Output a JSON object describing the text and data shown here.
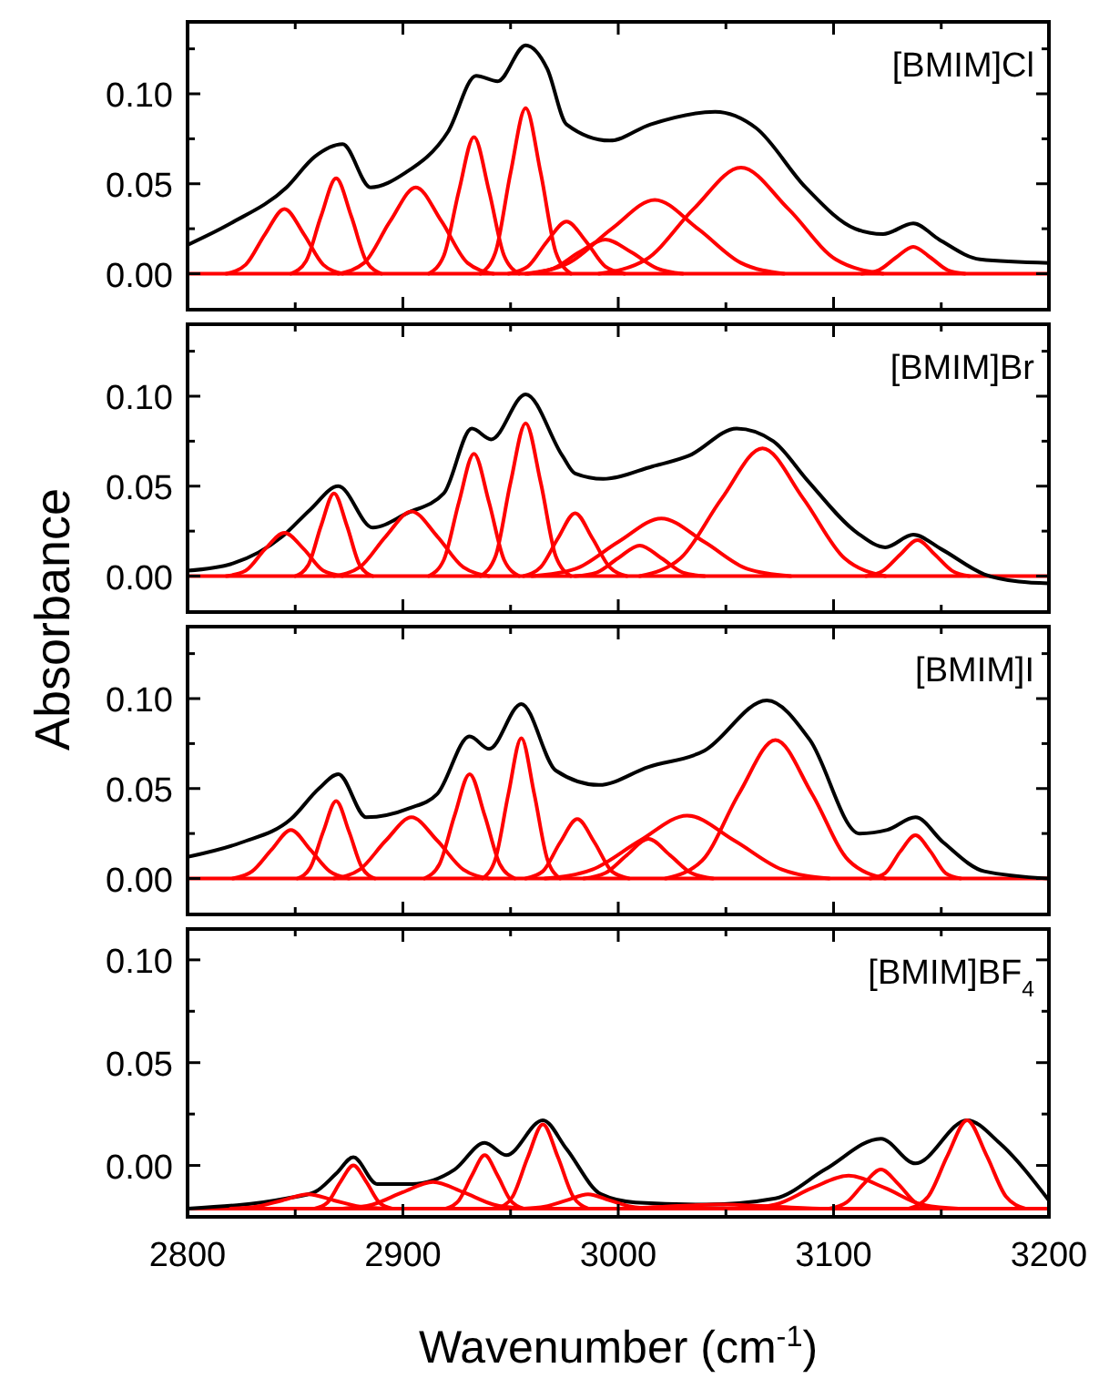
{
  "chart_data": [
    {
      "type": "line",
      "title": "[BMIM]Cl",
      "xlim": [
        2800,
        3200
      ],
      "ylim": [
        -0.02,
        0.14
      ],
      "tick_labels": "y",
      "xticks": [
        2800,
        {
          "value": 2850,
          "label": null
        },
        2900,
        {
          "value": 2950,
          "label": null
        },
        3000,
        {
          "value": 3050,
          "label": null
        },
        3100,
        {
          "value": 3150,
          "label": null
        },
        3200
      ],
      "yticks": [
        {
          "value": 0,
          "label": "0.00"
        },
        {
          "value": 0.025,
          "label": null
        },
        {
          "value": 0.05,
          "label": "0.05"
        },
        {
          "value": 0.075,
          "label": null
        },
        {
          "value": 0.1,
          "label": "0.10"
        },
        {
          "value": 0.125,
          "label": null
        }
      ],
      "ref_lines": [
        {
          "axis": "y",
          "value": 0,
          "color": "#ff0000"
        }
      ],
      "series": [
        {
          "color": "#000000",
          "x": [
            2800,
            2820,
            2846,
            2859,
            2872,
            2885,
            2901,
            2921,
            2934,
            2944,
            2957,
            2967,
            2976,
            2996,
            3015,
            3045,
            3064,
            3087,
            3110,
            3123,
            3137,
            3149,
            3168,
            3200
          ],
          "values": [
            0.016,
            0.028,
            0.048,
            0.065,
            0.072,
            0.048,
            0.056,
            0.079,
            0.11,
            0.107,
            0.127,
            0.114,
            0.083,
            0.074,
            0.083,
            0.09,
            0.081,
            0.048,
            0.025,
            0.022,
            0.028,
            0.019,
            0.008,
            0.006
          ]
        },
        {
          "color": "#ff0000",
          "x": [
            2818,
            2827,
            2836,
            2845,
            2854,
            2863,
            2872
          ],
          "values": [
            0,
            0.005,
            0.022,
            0.036,
            0.022,
            0.005,
            0
          ]
        },
        {
          "color": "#ff0000",
          "x": [
            2848,
            2855,
            2862,
            2869,
            2876,
            2883,
            2890
          ],
          "values": [
            0,
            0.007,
            0.032,
            0.053,
            0.032,
            0.007,
            0
          ]
        },
        {
          "color": "#ff0000",
          "x": [
            2870,
            2882,
            2894,
            2906,
            2918,
            2930,
            2942
          ],
          "values": [
            0,
            0.006,
            0.029,
            0.048,
            0.029,
            0.006,
            0
          ]
        },
        {
          "color": "#ff0000",
          "x": [
            2912,
            2919,
            2926,
            2933,
            2940,
            2947,
            2954
          ],
          "values": [
            0,
            0.01,
            0.046,
            0.076,
            0.046,
            0.01,
            0
          ]
        },
        {
          "color": "#ff0000",
          "x": [
            2936,
            2943,
            2950,
            2957,
            2964,
            2971,
            2978
          ],
          "values": [
            0,
            0.012,
            0.056,
            0.092,
            0.056,
            0.012,
            0
          ]
        },
        {
          "color": "#ff0000",
          "x": [
            2949,
            2958,
            2967,
            2976,
            2985,
            2994,
            3003
          ],
          "values": [
            0,
            0.004,
            0.018,
            0.029,
            0.018,
            0.004,
            0
          ]
        },
        {
          "color": "#ff0000",
          "x": [
            2958,
            2970,
            2982,
            2994,
            3006,
            3018,
            3030
          ],
          "values": [
            0,
            0.003,
            0.012,
            0.019,
            0.012,
            0.003,
            0
          ]
        },
        {
          "color": "#ff0000",
          "x": [
            2957,
            2977,
            2997,
            3017,
            3037,
            3057,
            3077
          ],
          "values": [
            0,
            0.006,
            0.025,
            0.041,
            0.025,
            0.006,
            0
          ]
        },
        {
          "color": "#ff0000",
          "x": [
            2991,
            3013,
            3035,
            3057,
            3079,
            3101,
            3123
          ],
          "values": [
            0,
            0.008,
            0.036,
            0.059,
            0.036,
            0.008,
            0
          ]
        },
        {
          "color": "#ff0000",
          "x": [
            3113,
            3121,
            3129,
            3137,
            3145,
            3153,
            3161
          ],
          "values": [
            0,
            0.002,
            0.009,
            0.015,
            0.009,
            0.002,
            0
          ]
        }
      ]
    },
    {
      "type": "line",
      "title": "[BMIM]Br",
      "ylabel": "Absorbance",
      "xlim": [
        2800,
        3200
      ],
      "ylim": [
        -0.02,
        0.14
      ],
      "tick_labels": "y",
      "xticks": [
        2800,
        {
          "value": 2850,
          "label": null
        },
        2900,
        {
          "value": 2950,
          "label": null
        },
        3000,
        {
          "value": 3050,
          "label": null
        },
        3100,
        {
          "value": 3150,
          "label": null
        },
        3200
      ],
      "yticks": [
        {
          "value": 0,
          "label": "0.00"
        },
        {
          "value": 0.025,
          "label": null
        },
        {
          "value": 0.05,
          "label": "0.05"
        },
        {
          "value": 0.075,
          "label": null
        },
        {
          "value": 0.1,
          "label": "0.10"
        },
        {
          "value": 0.125,
          "label": null
        }
      ],
      "ref_lines": [
        {
          "axis": "y",
          "value": 0,
          "color": "#ff0000"
        }
      ],
      "series": [
        {
          "color": "#000000",
          "x": [
            2800,
            2821,
            2844,
            2857,
            2870,
            2886,
            2902,
            2919,
            2932,
            2941,
            2957,
            2974,
            2980,
            2993,
            3016,
            3033,
            3055,
            3072,
            3088,
            3111,
            3124,
            3137,
            3150,
            3170,
            3186,
            3200
          ],
          "values": [
            0.003,
            0.007,
            0.022,
            0.037,
            0.05,
            0.027,
            0.035,
            0.046,
            0.082,
            0.076,
            0.101,
            0.067,
            0.057,
            0.054,
            0.061,
            0.067,
            0.082,
            0.075,
            0.053,
            0.024,
            0.016,
            0.023,
            0.015,
            0.001,
            -0.003,
            -0.004
          ]
        },
        {
          "color": "#ff0000",
          "x": [
            2818,
            2827,
            2836,
            2845,
            2854,
            2863,
            2872
          ],
          "values": [
            0,
            0.003,
            0.015,
            0.024,
            0.015,
            0.003,
            0
          ]
        },
        {
          "color": "#ff0000",
          "x": [
            2850,
            2856,
            2862,
            2868,
            2874,
            2880,
            2886
          ],
          "values": [
            0,
            0.006,
            0.028,
            0.046,
            0.028,
            0.006,
            0
          ]
        },
        {
          "color": "#ff0000",
          "x": [
            2868,
            2880,
            2892,
            2904,
            2916,
            2928,
            2940
          ],
          "values": [
            0,
            0.005,
            0.022,
            0.036,
            0.022,
            0.005,
            0
          ]
        },
        {
          "color": "#ff0000",
          "x": [
            2912,
            2919,
            2926,
            2933,
            2940,
            2947,
            2954
          ],
          "values": [
            0,
            0.009,
            0.041,
            0.068,
            0.041,
            0.009,
            0
          ]
        },
        {
          "color": "#ff0000",
          "x": [
            2936,
            2943,
            2950,
            2957,
            2964,
            2971,
            2978
          ],
          "values": [
            0,
            0.011,
            0.052,
            0.085,
            0.052,
            0.011,
            0
          ]
        },
        {
          "color": "#ff0000",
          "x": [
            2956,
            2964,
            2972,
            2980,
            2988,
            2996,
            3004
          ],
          "values": [
            0,
            0.005,
            0.021,
            0.035,
            0.021,
            0.005,
            0
          ]
        },
        {
          "color": "#ff0000",
          "x": [
            2980,
            2990,
            3000,
            3010,
            3020,
            3030,
            3040
          ],
          "values": [
            0,
            0.002,
            0.01,
            0.017,
            0.01,
            0.002,
            0
          ]
        },
        {
          "color": "#ff0000",
          "x": [
            2960,
            2980,
            3000,
            3020,
            3040,
            3060,
            3080
          ],
          "values": [
            0,
            0.004,
            0.019,
            0.032,
            0.019,
            0.004,
            0
          ]
        },
        {
          "color": "#ff0000",
          "x": [
            3010,
            3029,
            3048,
            3067,
            3086,
            3105,
            3124
          ],
          "values": [
            0,
            0.01,
            0.043,
            0.071,
            0.043,
            0.01,
            0
          ]
        },
        {
          "color": "#ff0000",
          "x": [
            3115,
            3123,
            3131,
            3139,
            3147,
            3155,
            3163
          ],
          "values": [
            0,
            0.003,
            0.012,
            0.02,
            0.012,
            0.003,
            0
          ]
        }
      ]
    },
    {
      "type": "line",
      "title": "[BMIM]I",
      "xlim": [
        2800,
        3200
      ],
      "ylim": [
        -0.02,
        0.14
      ],
      "tick_labels": "y",
      "xticks": [
        2800,
        {
          "value": 2850,
          "label": null
        },
        2900,
        {
          "value": 2950,
          "label": null
        },
        3000,
        {
          "value": 3050,
          "label": null
        },
        3100,
        {
          "value": 3150,
          "label": null
        },
        3200
      ],
      "yticks": [
        {
          "value": 0,
          "label": "0.00"
        },
        {
          "value": 0.025,
          "label": null
        },
        {
          "value": 0.05,
          "label": "0.05"
        },
        {
          "value": 0.075,
          "label": null
        },
        {
          "value": 0.1,
          "label": "0.10"
        },
        {
          "value": 0.125,
          "label": null
        }
      ],
      "ref_lines": [
        {
          "axis": "y",
          "value": 0,
          "color": "#ff0000"
        }
      ],
      "series": [
        {
          "color": "#000000",
          "x": [
            2800,
            2825,
            2848,
            2861,
            2870,
            2883,
            2903,
            2916,
            2931,
            2940,
            2955,
            2971,
            2991,
            3014,
            3040,
            3069,
            3089,
            3112,
            3125,
            3138,
            3151,
            3170,
            3200
          ],
          "values": [
            0.012,
            0.02,
            0.033,
            0.05,
            0.058,
            0.034,
            0.039,
            0.047,
            0.079,
            0.072,
            0.097,
            0.06,
            0.052,
            0.062,
            0.071,
            0.099,
            0.077,
            0.025,
            0.027,
            0.034,
            0.02,
            0.004,
            0.0
          ]
        },
        {
          "color": "#ff0000",
          "x": [
            2821,
            2830,
            2839,
            2848,
            2857,
            2866,
            2875
          ],
          "values": [
            0,
            0.004,
            0.016,
            0.027,
            0.016,
            0.004,
            0
          ]
        },
        {
          "color": "#ff0000",
          "x": [
            2851,
            2857,
            2863,
            2869,
            2875,
            2881,
            2887
          ],
          "values": [
            0,
            0.006,
            0.026,
            0.043,
            0.026,
            0.006,
            0
          ]
        },
        {
          "color": "#ff0000",
          "x": [
            2868,
            2880,
            2892,
            2904,
            2916,
            2928,
            2940
          ],
          "values": [
            0,
            0.005,
            0.021,
            0.034,
            0.021,
            0.005,
            0
          ]
        },
        {
          "color": "#ff0000",
          "x": [
            2910,
            2917,
            2924,
            2931,
            2938,
            2945,
            2952
          ],
          "values": [
            0,
            0.008,
            0.035,
            0.058,
            0.035,
            0.008,
            0
          ]
        },
        {
          "color": "#ff0000",
          "x": [
            2937,
            2943,
            2949,
            2955,
            2961,
            2967,
            2973
          ],
          "values": [
            0,
            0.011,
            0.047,
            0.078,
            0.047,
            0.011,
            0
          ]
        },
        {
          "color": "#ff0000",
          "x": [
            2957,
            2965,
            2973,
            2981,
            2989,
            2997,
            3005
          ],
          "values": [
            0,
            0.004,
            0.02,
            0.033,
            0.02,
            0.004,
            0
          ]
        },
        {
          "color": "#ff0000",
          "x": [
            2984,
            2994,
            3004,
            3014,
            3024,
            3034,
            3044
          ],
          "values": [
            0,
            0.003,
            0.013,
            0.022,
            0.013,
            0.003,
            0
          ]
        },
        {
          "color": "#ff0000",
          "x": [
            2966,
            2988,
            3010,
            3032,
            3054,
            3076,
            3098
          ],
          "values": [
            0,
            0.005,
            0.021,
            0.035,
            0.021,
            0.005,
            0
          ]
        },
        {
          "color": "#ff0000",
          "x": [
            3022,
            3039,
            3056,
            3073,
            3090,
            3107,
            3124
          ],
          "values": [
            0,
            0.01,
            0.047,
            0.077,
            0.047,
            0.01,
            0
          ]
        },
        {
          "color": "#ff0000",
          "x": [
            3117,
            3124,
            3131,
            3138,
            3145,
            3152,
            3159
          ],
          "values": [
            0,
            0.003,
            0.015,
            0.024,
            0.015,
            0.003,
            0
          ]
        }
      ]
    },
    {
      "type": "line",
      "title": "[BMIM]BF$_{4}$",
      "xlabel": "Wavenumber (cm$^{-1}$)",
      "xlim": [
        2800,
        3200
      ],
      "ylim": [
        -0.025,
        0.115
      ],
      "xticks": [
        2800,
        {
          "value": 2850,
          "label": null
        },
        2900,
        {
          "value": 2950,
          "label": null
        },
        3000,
        {
          "value": 3050,
          "label": null
        },
        3100,
        {
          "value": 3150,
          "label": null
        },
        3200
      ],
      "yticks": [
        {
          "value": 0,
          "label": "0.00"
        },
        {
          "value": 0.025,
          "label": null
        },
        {
          "value": 0.05,
          "label": "0.05"
        },
        {
          "value": 0.075,
          "label": null
        },
        {
          "value": 0.1,
          "label": "0.10"
        }
      ],
      "ref_lines": [
        {
          "axis": "y",
          "value": -0.021,
          "color": "#ff0000"
        }
      ],
      "series": [
        {
          "color": "#000000",
          "x": [
            2800,
            2846,
            2859,
            2869,
            2877,
            2888,
            2904,
            2924,
            2938,
            2948,
            2965,
            2976,
            2992,
            3008,
            3041,
            3073,
            3096,
            3122,
            3138,
            3162,
            3177,
            3200
          ],
          "values": [
            -0.021,
            -0.016,
            -0.013,
            -0.004,
            0.004,
            -0.009,
            -0.009,
            -0.002,
            0.011,
            0.005,
            0.022,
            0.008,
            -0.014,
            -0.018,
            -0.019,
            -0.016,
            -0.002,
            0.013,
            0.001,
            0.022,
            0.011,
            -0.017
          ]
        },
        {
          "color": "#ff0000",
          "x": [
            2820,
            2832,
            2844,
            2856,
            2868,
            2880,
            2892
          ],
          "values": [
            -0.021,
            -0.02,
            -0.017,
            -0.014,
            -0.017,
            -0.02,
            -0.021
          ]
        },
        {
          "color": "#ff0000",
          "x": [
            2859,
            2865,
            2871,
            2877,
            2883,
            2889,
            2895
          ],
          "values": [
            -0.021,
            -0.018,
            -0.008,
            0,
            -0.008,
            -0.018,
            -0.021
          ]
        },
        {
          "color": "#ff0000",
          "x": [
            2872,
            2886,
            2900,
            2914,
            2928,
            2942,
            2956
          ],
          "values": [
            -0.021,
            -0.019,
            -0.013,
            -0.008,
            -0.013,
            -0.019,
            -0.021
          ]
        },
        {
          "color": "#ff0000",
          "x": [
            2920,
            2926,
            2932,
            2938,
            2944,
            2950,
            2956
          ],
          "values": [
            -0.021,
            -0.017,
            -0.005,
            0.005,
            -0.005,
            -0.017,
            -0.021
          ]
        },
        {
          "color": "#ff0000",
          "x": [
            2944,
            2951,
            2958,
            2965,
            2972,
            2979,
            2986
          ],
          "values": [
            -0.021,
            -0.015,
            0.004,
            0.02,
            0.004,
            -0.015,
            -0.021
          ]
        },
        {
          "color": "#ff0000",
          "x": [
            2956,
            2966,
            2976,
            2986,
            2996,
            3006,
            3016
          ],
          "values": [
            -0.021,
            -0.02,
            -0.017,
            -0.014,
            -0.017,
            -0.02,
            -0.021
          ]
        },
        {
          "color": "#ff0000",
          "x": [
            2972,
            2997,
            3022,
            3047,
            3072,
            3097,
            3122
          ],
          "values": [
            -0.021,
            -0.021,
            -0.02,
            -0.019,
            -0.02,
            -0.021,
            -0.021
          ]
        },
        {
          "color": "#ff0000",
          "x": [
            3056,
            3073,
            3090,
            3107,
            3124,
            3141,
            3158
          ],
          "values": [
            -0.021,
            -0.019,
            -0.011,
            -0.005,
            -0.011,
            -0.019,
            -0.021
          ]
        },
        {
          "color": "#ff0000",
          "x": [
            3098,
            3106,
            3114,
            3122,
            3130,
            3138,
            3146
          ],
          "values": [
            -0.021,
            -0.018,
            -0.009,
            -0.002,
            -0.009,
            -0.018,
            -0.021
          ]
        },
        {
          "color": "#ff0000",
          "x": [
            3135,
            3144,
            3153,
            3162,
            3171,
            3180,
            3189
          ],
          "values": [
            -0.021,
            -0.015,
            0.005,
            0.022,
            0.005,
            -0.015,
            -0.021
          ]
        }
      ]
    }
  ]
}
